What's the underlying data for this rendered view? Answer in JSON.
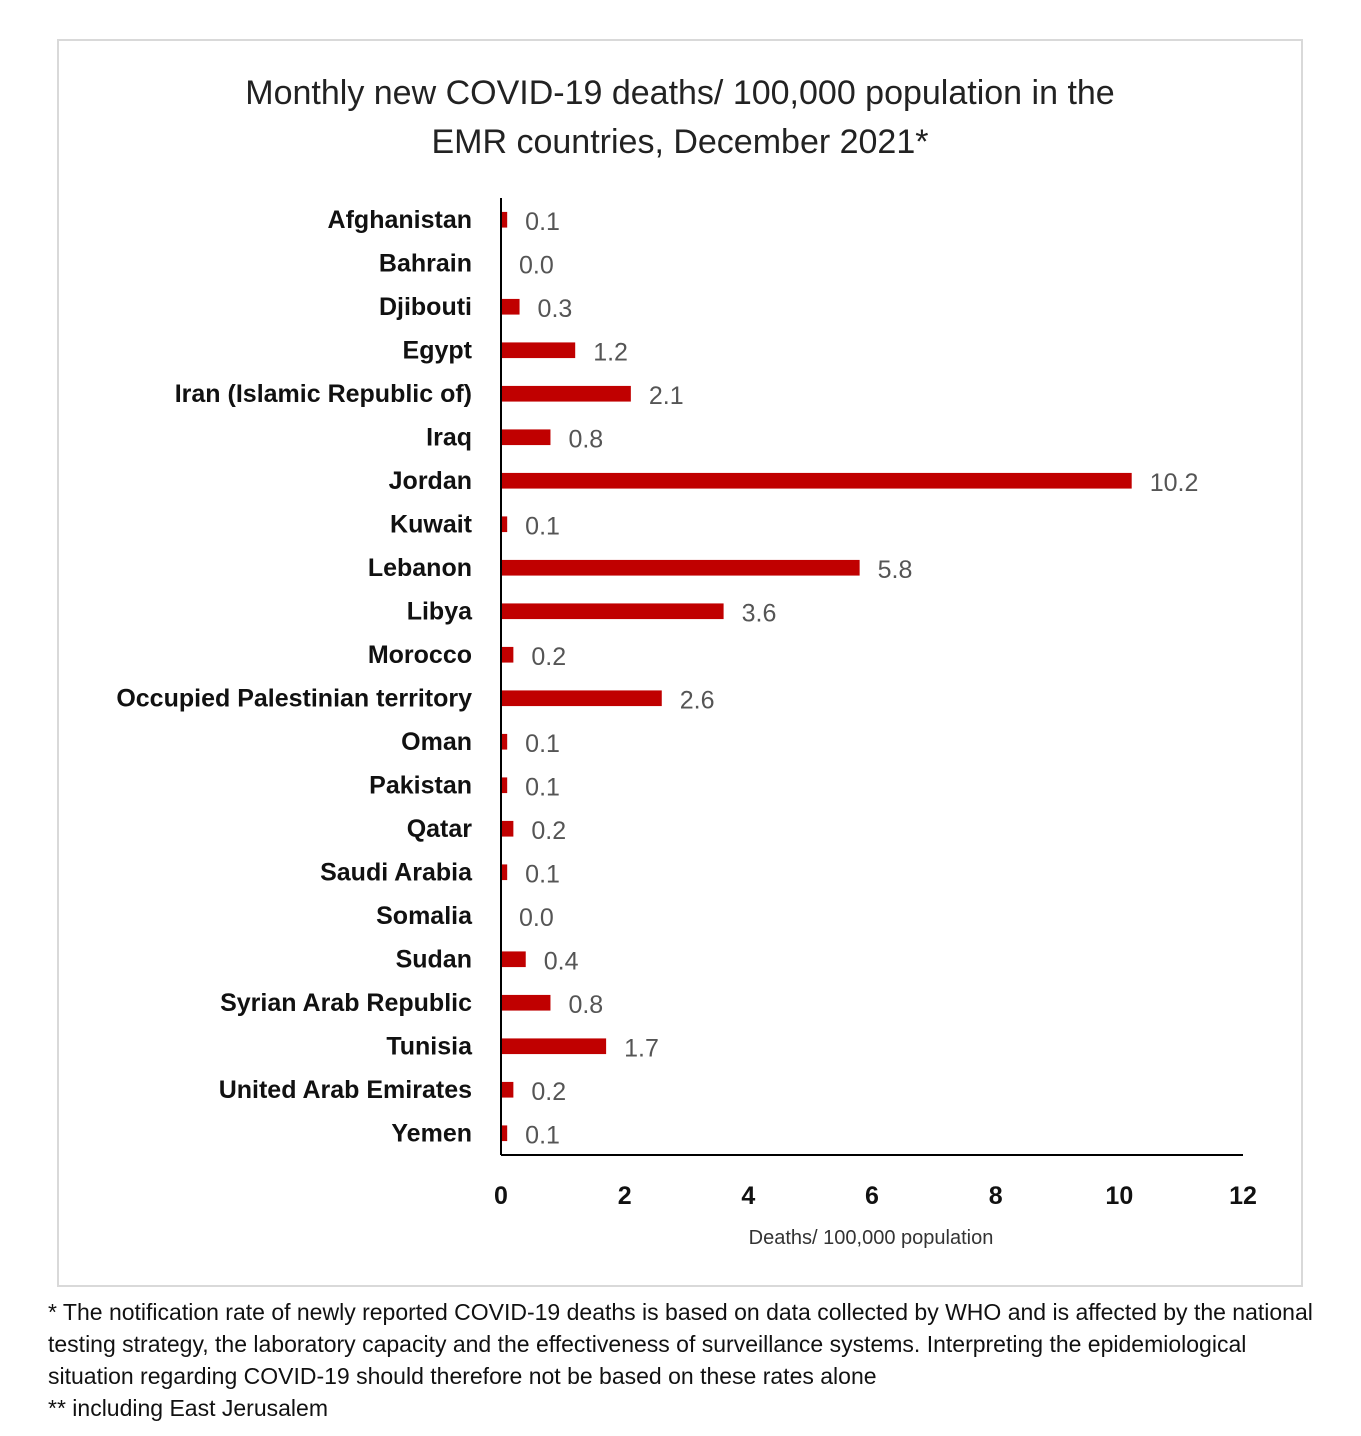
{
  "chart_data": {
    "type": "bar",
    "orientation": "horizontal",
    "title": [
      "Monthly new COVID-19 deaths/ 100,000 population in the",
      "EMR countries, December 2021*"
    ],
    "xlabel": "Deaths/ 100,000 population",
    "ylabel": "",
    "xlim": [
      0,
      12
    ],
    "xticks": [
      0,
      2,
      4,
      6,
      8,
      10,
      12
    ],
    "grid": false,
    "bar_color": "#c00000",
    "categories": [
      "Afghanistan",
      "Bahrain",
      "Djibouti",
      "Egypt",
      "Iran (Islamic Republic of)",
      "Iraq",
      "Jordan",
      "Kuwait",
      "Lebanon",
      "Libya",
      "Morocco",
      "Occupied Palestinian territory",
      "Oman",
      "Pakistan",
      "Qatar",
      "Saudi Arabia",
      "Somalia",
      "Sudan",
      "Syrian Arab Republic",
      "Tunisia",
      "United Arab Emirates",
      "Yemen"
    ],
    "values": [
      0.1,
      0.0,
      0.3,
      1.2,
      2.1,
      0.8,
      10.2,
      0.1,
      5.8,
      3.6,
      0.2,
      2.6,
      0.1,
      0.1,
      0.2,
      0.1,
      0.0,
      0.4,
      0.8,
      1.7,
      0.2,
      0.1
    ],
    "value_labels": [
      "0.1",
      "0.0",
      "0.3",
      "1.2",
      "2.1",
      "0.8",
      "10.2",
      "0.1",
      "5.8",
      "3.6",
      "0.2",
      "2.6",
      "0.1",
      "0.1",
      "0.2",
      "0.1",
      "0.0",
      "0.4",
      "0.8",
      "1.7",
      "0.2",
      "0.1"
    ]
  },
  "footnotes": {
    "note1": "* The notification rate of newly reported COVID-19 deaths is based on data collected by WHO and is affected by the national testing strategy, the laboratory capacity and the effectiveness of surveillance systems. Interpreting the epidemiological situation regarding COVID-19 should therefore not be based on these rates alone",
    "note2": "** including East Jerusalem"
  }
}
